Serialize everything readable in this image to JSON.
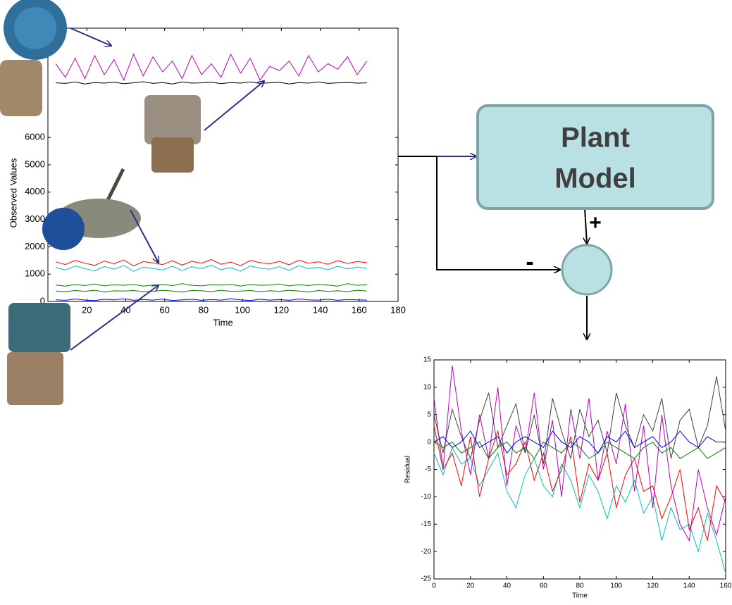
{
  "chart_data": [
    {
      "type": "line",
      "y_label": "Observed Values",
      "x_label": "Time",
      "xlim": [
        0,
        180
      ],
      "xticks": [
        20,
        40,
        60,
        80,
        100,
        120,
        140,
        160,
        180
      ],
      "ylim": [
        0,
        10000
      ],
      "yticks": [
        0,
        1000,
        2000,
        3000,
        4000,
        5000,
        6000
      ],
      "x": [
        4,
        9,
        14,
        19,
        24,
        29,
        34,
        39,
        44,
        49,
        54,
        59,
        64,
        69,
        74,
        79,
        84,
        89,
        94,
        99,
        104,
        109,
        114,
        119,
        124,
        129,
        134,
        139,
        144,
        149,
        154,
        159,
        164
      ],
      "series": [
        {
          "color": "#c000c0",
          "values": [
            8700,
            8200,
            8900,
            8150,
            9000,
            8300,
            8850,
            8100,
            9050,
            8250,
            8950,
            8400,
            8800,
            8150,
            9000,
            8300,
            8700,
            8200,
            9050,
            8350,
            8900,
            8100,
            8600,
            8450,
            8800,
            8250,
            9000,
            8400,
            8700,
            8500,
            8950,
            8300,
            8800
          ]
        },
        {
          "color": "#000000",
          "values": [
            8000,
            7980,
            8030,
            7960,
            8010,
            7990,
            8020,
            7970,
            8000,
            8040,
            7980,
            8010,
            7960,
            8030,
            7990,
            8000,
            8020,
            7970,
            8010,
            7990,
            8030,
            7980,
            8000,
            8020,
            7960,
            8010,
            7990,
            8030,
            7980,
            8000,
            8010,
            7990,
            8000
          ]
        },
        {
          "color": "#ff0000",
          "values": [
            1450,
            1350,
            1500,
            1400,
            1320,
            1480,
            1380,
            1520,
            1300,
            1460,
            1410,
            1350,
            1490,
            1330,
            1470,
            1400,
            1530,
            1360,
            1440,
            1310,
            1500,
            1420,
            1380,
            1470,
            1340,
            1510,
            1400,
            1450,
            1360,
            1490,
            1390,
            1460,
            1420
          ]
        },
        {
          "color": "#00bfbf",
          "values": [
            1250,
            1150,
            1300,
            1200,
            1120,
            1280,
            1180,
            1320,
            1100,
            1260,
            1210,
            1150,
            1290,
            1130,
            1270,
            1200,
            1330,
            1160,
            1240,
            1110,
            1300,
            1220,
            1180,
            1270,
            1140,
            1310,
            1200,
            1250,
            1160,
            1290,
            1190,
            1260,
            1220
          ]
        },
        {
          "color": "#008000",
          "values": [
            600,
            560,
            620,
            580,
            640,
            570,
            610,
            590,
            630,
            560,
            600,
            620,
            580,
            650,
            590,
            570,
            610,
            600,
            630,
            560,
            620,
            590,
            600,
            640,
            570,
            610,
            580,
            630,
            600,
            560,
            650,
            590,
            610
          ]
        },
        {
          "color": "#008000",
          "values": [
            380,
            360,
            400,
            370,
            410,
            350,
            390,
            380,
            400,
            360,
            370,
            410,
            380,
            350,
            400,
            390,
            360,
            410,
            370,
            380,
            400,
            360,
            390,
            370,
            410,
            380,
            350,
            400,
            370,
            390,
            360,
            410,
            380
          ]
        },
        {
          "color": "#0000ff",
          "values": [
            60,
            40,
            90,
            50,
            30,
            80,
            60,
            100,
            40,
            70,
            50,
            90,
            30,
            60,
            80,
            40,
            70,
            50,
            100,
            60,
            30,
            80,
            50,
            70,
            40,
            90,
            60,
            50,
            80,
            40,
            70,
            60,
            50
          ]
        }
      ]
    },
    {
      "type": "line",
      "y_label": "Residual",
      "x_label": "Time",
      "xlim": [
        0,
        160
      ],
      "xticks": [
        0,
        20,
        40,
        60,
        80,
        100,
        120,
        140,
        160
      ],
      "ylim": [
        -25,
        15
      ],
      "yticks": [
        -25,
        -20,
        -15,
        -10,
        -5,
        0,
        5,
        10,
        15
      ],
      "x": [
        0,
        5,
        10,
        15,
        20,
        25,
        30,
        35,
        40,
        45,
        50,
        55,
        60,
        65,
        70,
        75,
        80,
        85,
        90,
        95,
        100,
        105,
        110,
        115,
        120,
        125,
        130,
        135,
        140,
        145,
        150,
        155,
        160
      ],
      "series": [
        {
          "color": "#00bfbf",
          "values": [
            -2,
            -6,
            -1,
            -4,
            -3,
            -8,
            -5,
            -2,
            -9,
            -12,
            -6,
            -3,
            -8,
            -10,
            -4,
            -7,
            -12,
            -6,
            -9,
            -14,
            -8,
            -11,
            -7,
            -13,
            -10,
            -18,
            -12,
            -16,
            -15,
            -20,
            -13,
            -18,
            -24
          ]
        },
        {
          "color": "#ff0000",
          "values": [
            3,
            -5,
            -2,
            -8,
            1,
            -10,
            -3,
            2,
            -6,
            -4,
            0,
            -7,
            -2,
            -9,
            -5,
            1,
            -11,
            -4,
            -7,
            -2,
            -12,
            -6,
            -3,
            -9,
            -8,
            -14,
            -10,
            -5,
            -16,
            -12,
            -18,
            -8,
            -11
          ]
        },
        {
          "color": "#c000c0",
          "values": [
            8,
            -5,
            14,
            2,
            -6,
            5,
            -3,
            10,
            -8,
            3,
            -2,
            9,
            -5,
            4,
            -10,
            6,
            -3,
            8,
            -7,
            2,
            -4,
            7,
            -9,
            3,
            -12,
            5,
            -8,
            -15,
            -18,
            -5,
            -12,
            -17,
            -10
          ]
        },
        {
          "color": "#404040",
          "values": [
            5,
            -2,
            6,
            1,
            -3,
            4,
            9,
            -1,
            3,
            7,
            -2,
            5,
            -4,
            8,
            2,
            -3,
            6,
            1,
            4,
            -2,
            9,
            3,
            -1,
            5,
            2,
            8,
            -3,
            4,
            6,
            -1,
            3,
            12,
            2
          ]
        },
        {
          "color": "#008000",
          "values": [
            0,
            -1,
            0,
            -2,
            -1,
            0,
            -3,
            -1,
            0,
            -2,
            -1,
            -3,
            0,
            -1,
            -2,
            0,
            -1,
            -3,
            -2,
            0,
            -1,
            -2,
            -3,
            -1,
            0,
            -2,
            -1,
            -3,
            -2,
            -1,
            -3,
            -2,
            -1
          ]
        },
        {
          "color": "#0000ff",
          "values": [
            0,
            1,
            -1,
            0,
            2,
            -1,
            0,
            1,
            -2,
            0,
            1,
            0,
            -1,
            2,
            0,
            -1,
            1,
            0,
            -2,
            1,
            0,
            2,
            -1,
            0,
            1,
            -1,
            0,
            2,
            0,
            -1,
            1,
            0,
            0
          ]
        }
      ]
    }
  ],
  "diagram": {
    "block_label": [
      "Plant",
      "Model"
    ],
    "plus": "+",
    "minus": "-"
  }
}
